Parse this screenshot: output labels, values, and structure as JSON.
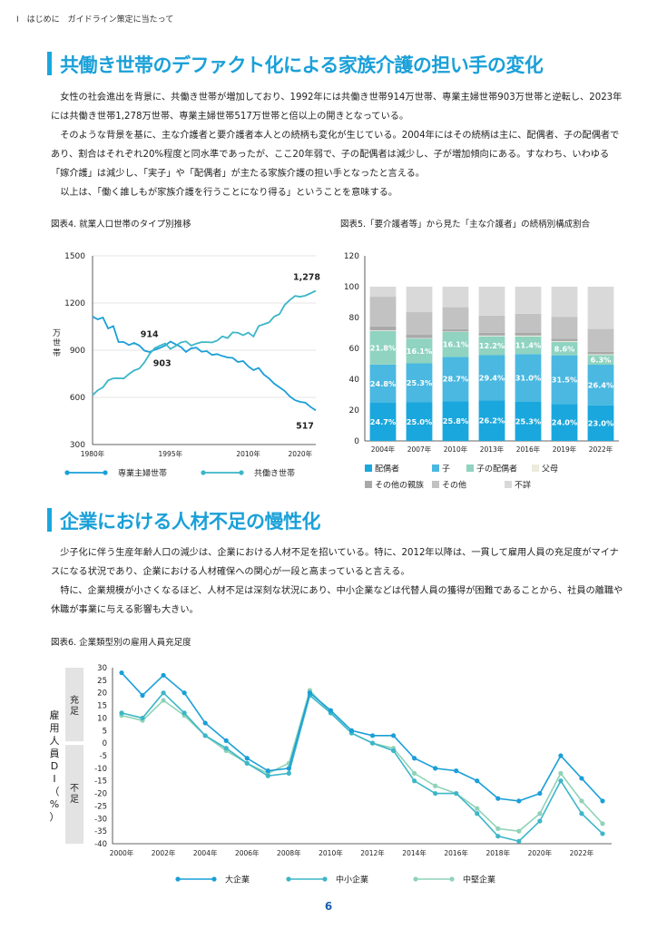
{
  "running_head": "Ⅰ　はじめに　ガイドライン策定に当たって",
  "section1": {
    "title": "共働き世帯のデファクト化による家族介護の担い手の変化",
    "paragraphs": [
      "女性の社会進出を背景に、共働き世帯が増加しており、1992年には共働き世帯914万世帯、専業主婦世帯903万世帯と逆転し、2023年には共働き世帯1,278万世帯、専業主婦世帯517万世帯と倍以上の開きとなっている。",
      "そのような背景を基に、主な介護者と要介護者本人との続柄も変化が生じている。2004年にはその続柄は主に、配偶者、子の配偶者であり、割合はそれぞれ20%程度と同水準であったが、ここ20年弱で、子の配偶者は減少し、子が増加傾向にある。すなわち、いわゆる「嫁介護」は減少し、「実子」や「配偶者」が主たる家族介護の担い手となったと言える。",
      "以上は、「働く誰しもが家族介護を行うことになり得る」ということを意味する。"
    ]
  },
  "section2": {
    "title": "企業における人材不足の慢性化",
    "paragraphs": [
      "少子化に伴う生産年齢人口の減少は、企業における人材不足を招いている。特に、2012年以降は、一貫して雇用人員の充足度がマイナスになる状況であり、企業における人材確保への関心が一段と高まっていると言える。",
      "特に、企業規模が小さくなるほど、人材不足は深刻な状況にあり、中小企業などは代替人員の獲得が困難であることから、社員の離職や休職が事業に与える影響も大きい。"
    ]
  },
  "page_number": "6",
  "colors": {
    "accent": "#1aa7dd",
    "series_a": "#1a9fd8",
    "series_b": "#3cb6c8",
    "series_c": "#8fd3b8"
  },
  "chart_data": [
    {
      "id": "fig4",
      "type": "line",
      "title": "図表4. 就業人口世帯のタイプ別推移",
      "ylabel": "万世帯",
      "ylim": [
        300,
        1500
      ],
      "yticks": [
        1500,
        1200,
        900,
        600,
        300
      ],
      "x_range": [
        1980,
        2023
      ],
      "xticks": [
        "1980年",
        "1995年",
        "2010年",
        "2020年"
      ],
      "xtick_values": [
        1980,
        1995,
        2010,
        2020
      ],
      "annotations": [
        "914",
        "903",
        "1,278",
        "517"
      ],
      "series": [
        {
          "name": "専業主婦世帯",
          "color": "#1a9fd8",
          "x": [
            1980,
            1981,
            1982,
            1983,
            1984,
            1985,
            1986,
            1987,
            1988,
            1989,
            1990,
            1991,
            1992,
            1993,
            1994,
            1995,
            1996,
            1997,
            1998,
            1999,
            2000,
            2001,
            2002,
            2003,
            2004,
            2005,
            2006,
            2007,
            2008,
            2009,
            2010,
            2011,
            2012,
            2013,
            2014,
            2015,
            2016,
            2017,
            2018,
            2019,
            2020,
            2021,
            2022,
            2023
          ],
          "values": [
            1114,
            1096,
            1108,
            1038,
            1053,
            952,
            952,
            933,
            946,
            930,
            897,
            888,
            903,
            915,
            930,
            955,
            937,
            921,
            889,
            912,
            916,
            890,
            894,
            870,
            875,
            863,
            854,
            851,
            825,
            831,
            797,
            773,
            787,
            745,
            720,
            687,
            664,
            641,
            606,
            582,
            571,
            566,
            539,
            517
          ]
        },
        {
          "name": "共働き世帯",
          "color": "#3cb6c8",
          "x": [
            1980,
            1981,
            1982,
            1983,
            1984,
            1985,
            1986,
            1987,
            1988,
            1989,
            1990,
            1991,
            1992,
            1993,
            1994,
            1995,
            1996,
            1997,
            1998,
            1999,
            2000,
            2001,
            2002,
            2003,
            2004,
            2005,
            2006,
            2007,
            2008,
            2009,
            2010,
            2011,
            2012,
            2013,
            2014,
            2015,
            2016,
            2017,
            2018,
            2019,
            2020,
            2021,
            2022,
            2023
          ],
          "values": [
            614,
            645,
            664,
            708,
            721,
            722,
            720,
            748,
            771,
            783,
            823,
            877,
            914,
            929,
            943,
            908,
            927,
            949,
            956,
            929,
            942,
            951,
            951,
            949,
            961,
            988,
            977,
            1013,
            1011,
            995,
            1012,
            987,
            1054,
            1065,
            1077,
            1114,
            1129,
            1188,
            1219,
            1245,
            1240,
            1247,
            1262,
            1278
          ]
        }
      ]
    },
    {
      "id": "fig5",
      "type": "bar",
      "stacked": true,
      "title": "図表5.「要介護者等」から見た「主な介護者」の続柄別構成割合",
      "ylim": [
        0,
        120
      ],
      "yticks": [
        0,
        20,
        40,
        60,
        80,
        100,
        120
      ],
      "categories": [
        "2004年",
        "2007年",
        "2010年",
        "2013年",
        "2016年",
        "2019年",
        "2022年"
      ],
      "series": [
        {
          "name": "配偶者",
          "color": "#1aa7dd",
          "values": [
            24.7,
            25.0,
            25.8,
            26.2,
            25.3,
            24.0,
            23.0
          ],
          "labels": [
            "24.7%",
            "25.0%",
            "25.8%",
            "26.2%",
            "25.3%",
            "24.0%",
            "23.0%"
          ]
        },
        {
          "name": "子",
          "color": "#4ab8e0",
          "values": [
            24.8,
            25.3,
            28.7,
            29.4,
            31.0,
            31.5,
            26.4
          ],
          "labels": [
            "24.8%",
            "25.3%",
            "28.7%",
            "29.4%",
            "31.0%",
            "31.5%",
            "26.4%"
          ]
        },
        {
          "name": "子の配偶者",
          "color": "#8fd3c0",
          "values": [
            21.8,
            16.1,
            16.1,
            12.2,
            11.4,
            8.6,
            6.3
          ],
          "labels": [
            "21.8%",
            "16.1%",
            "16.1%",
            "12.2%",
            "11.4%",
            "8.6%",
            "6.3%"
          ]
        },
        {
          "name": "父母",
          "color": "#ecebdc",
          "values": [
            0.4,
            0.3,
            0.3,
            0.5,
            0.6,
            0.6,
            0.5
          ]
        },
        {
          "name": "その他の親族",
          "color": "#a9a9a9",
          "values": [
            2.5,
            2.1,
            1.6,
            1.8,
            1.7,
            1.6,
            1.5
          ]
        },
        {
          "name": "その他",
          "color": "#c2c2c2",
          "values": [
            19.3,
            14.7,
            14.2,
            11.2,
            12.4,
            14.2,
            14.9
          ]
        },
        {
          "name": "不詳",
          "color": "#d9d9d9",
          "values": [
            6.5,
            16.5,
            13.3,
            18.7,
            17.6,
            19.5,
            27.4
          ]
        }
      ]
    },
    {
      "id": "fig6",
      "type": "line",
      "title": "図表6. 企業類型別の雇用人員充足度",
      "ylabel": "雇用人員DI（%）",
      "band_labels": [
        "充足",
        "不足"
      ],
      "ylim": [
        -40,
        30
      ],
      "yticks": [
        30,
        25,
        20,
        15,
        10,
        5,
        0,
        -5,
        -10,
        -15,
        -20,
        -25,
        -30,
        -35,
        -40
      ],
      "x_range": [
        2000,
        2023
      ],
      "xticks": [
        "2000年",
        "2002年",
        "2004年",
        "2006年",
        "2008年",
        "2010年",
        "2012年",
        "2014年",
        "2016年",
        "2018年",
        "2020年",
        "2022年"
      ],
      "xtick_values": [
        2000,
        2002,
        2004,
        2006,
        2008,
        2010,
        2012,
        2014,
        2016,
        2018,
        2020,
        2022
      ],
      "series": [
        {
          "name": "大企業",
          "color": "#1a9fd8",
          "x": [
            2000,
            2001,
            2002,
            2003,
            2004,
            2005,
            2006,
            2007,
            2008,
            2009,
            2010,
            2011,
            2012,
            2013,
            2014,
            2015,
            2016,
            2017,
            2018,
            2019,
            2020,
            2021,
            2022,
            2023
          ],
          "values": [
            28,
            19,
            27,
            20,
            8,
            1,
            -6,
            -11,
            -10,
            20,
            13,
            5,
            3,
            3,
            -6,
            -10,
            -11,
            -15,
            -22,
            -23,
            -20,
            -5,
            -14,
            -23
          ]
        },
        {
          "name": "中小企業",
          "color": "#3cb6c8",
          "x": [
            2000,
            2001,
            2002,
            2003,
            2004,
            2005,
            2006,
            2007,
            2008,
            2009,
            2010,
            2011,
            2012,
            2013,
            2014,
            2015,
            2016,
            2017,
            2018,
            2019,
            2020,
            2021,
            2022,
            2023
          ],
          "values": [
            12,
            10,
            20,
            12,
            3,
            -2,
            -8,
            -13,
            -12,
            19,
            12,
            4,
            0,
            -3,
            -15,
            -20,
            -20,
            -28,
            -37,
            -39,
            -31,
            -15,
            -28,
            -36
          ]
        },
        {
          "name": "中堅企業",
          "color": "#8fd3b8",
          "x": [
            2000,
            2001,
            2002,
            2003,
            2004,
            2005,
            2006,
            2007,
            2008,
            2009,
            2010,
            2011,
            2012,
            2013,
            2014,
            2015,
            2016,
            2017,
            2018,
            2019,
            2020,
            2021,
            2022,
            2023
          ],
          "values": [
            11,
            9,
            17,
            11,
            3,
            -3,
            -8,
            -12,
            -8,
            21,
            12,
            4,
            0,
            -2,
            -12,
            -17,
            -20,
            -26,
            -34,
            -35,
            -28,
            -12,
            -23,
            -32
          ]
        }
      ]
    }
  ]
}
